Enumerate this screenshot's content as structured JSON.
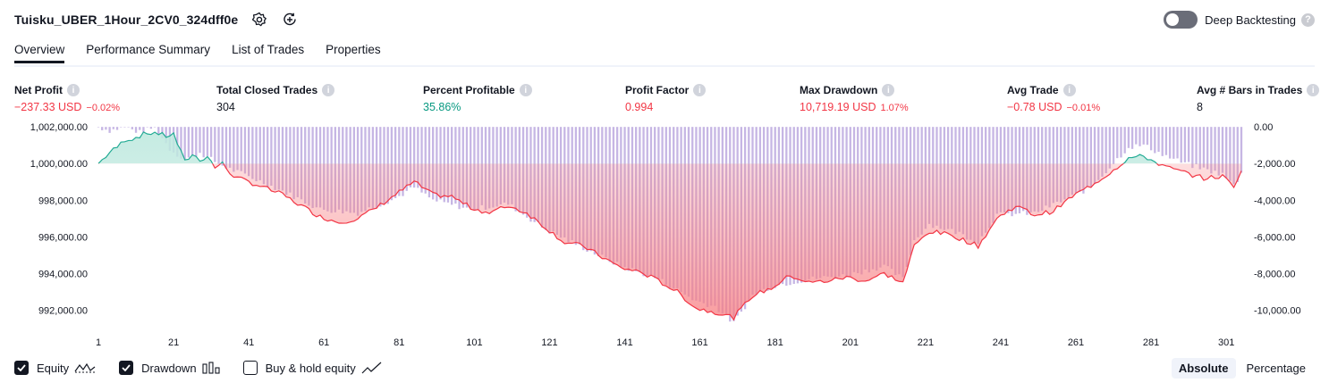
{
  "header": {
    "strategy_title": "Tuisku_UBER_1Hour_2CV0_324dff0e",
    "deep_backtesting_label": "Deep Backtesting",
    "deep_backtesting_enabled": false
  },
  "tabs": [
    {
      "label": "Overview",
      "active": true
    },
    {
      "label": "Performance Summary",
      "active": false
    },
    {
      "label": "List of Trades",
      "active": false
    },
    {
      "label": "Properties",
      "active": false
    }
  ],
  "metrics": {
    "net_profit": {
      "label": "Net Profit",
      "value": "−237.33 USD",
      "pct": "−0.02%"
    },
    "total_closed_trades": {
      "label": "Total Closed Trades",
      "value": "304"
    },
    "percent_profitable": {
      "label": "Percent Profitable",
      "value": "35.86%"
    },
    "profit_factor": {
      "label": "Profit Factor",
      "value": "0.994"
    },
    "max_drawdown": {
      "label": "Max Drawdown",
      "value": "10,719.19 USD",
      "pct": "1.07%"
    },
    "avg_trade": {
      "label": "Avg Trade",
      "value": "−0.78 USD",
      "pct": "−0.01%"
    },
    "avg_bars": {
      "label": "Avg # Bars in Trades",
      "value": "8"
    }
  },
  "legend": {
    "equity": {
      "label": "Equity",
      "checked": true
    },
    "drawdown": {
      "label": "Drawdown",
      "checked": true
    },
    "buy_hold": {
      "label": "Buy & hold equity",
      "checked": false
    }
  },
  "scale": {
    "absolute": "Absolute",
    "percentage": "Percentage",
    "selected": "absolute"
  },
  "colors": {
    "equity_profit_line": "#22ab94",
    "equity_profit_fill": "#bfe9df",
    "equity_loss_line": "#f23645",
    "equity_loss_fill": "#f77c80",
    "drawdown_bar": "#b39ddb",
    "axis_text": "#131722"
  },
  "chart_data": {
    "type": "area",
    "x_ticks": [
      1,
      21,
      41,
      61,
      81,
      101,
      121,
      141,
      161,
      181,
      201,
      221,
      241,
      261,
      281,
      301
    ],
    "left_axis": {
      "ticks": [
        "1,002,000.00",
        "1,000,000.00",
        "998,000.00",
        "996,000.00",
        "994,000.00",
        "992,000.00"
      ],
      "ylim": [
        991000,
        1002300
      ]
    },
    "right_axis": {
      "ticks": [
        "0.00",
        "-2,000.00",
        "-4,000.00",
        "-6,000.00",
        "-8,000.00",
        "-10,000.00"
      ],
      "ylim": [
        -11000,
        300
      ]
    },
    "baseline": 1000000,
    "equity_keypoints": [
      [
        1,
        1000000
      ],
      [
        4,
        1000600
      ],
      [
        6,
        1000900
      ],
      [
        8,
        1001300
      ],
      [
        10,
        1001350
      ],
      [
        13,
        1001600
      ],
      [
        16,
        1001700
      ],
      [
        19,
        1001500
      ],
      [
        21,
        1001600
      ],
      [
        24,
        1000100
      ],
      [
        26,
        1000500
      ],
      [
        28,
        1000200
      ],
      [
        30,
        1000400
      ],
      [
        32,
        999800
      ],
      [
        34,
        1000000
      ],
      [
        36,
        999500
      ],
      [
        38,
        999200
      ],
      [
        41,
        999000
      ],
      [
        45,
        998700
      ],
      [
        50,
        998300
      ],
      [
        55,
        997700
      ],
      [
        60,
        997100
      ],
      [
        65,
        996800
      ],
      [
        70,
        997000
      ],
      [
        75,
        997600
      ],
      [
        80,
        998300
      ],
      [
        85,
        999000
      ],
      [
        90,
        998300
      ],
      [
        95,
        998200
      ],
      [
        100,
        997600
      ],
      [
        105,
        997300
      ],
      [
        110,
        997700
      ],
      [
        115,
        997300
      ],
      [
        120,
        996500
      ],
      [
        125,
        995700
      ],
      [
        130,
        995500
      ],
      [
        135,
        994900
      ],
      [
        140,
        994300
      ],
      [
        145,
        994100
      ],
      [
        150,
        993600
      ],
      [
        155,
        993000
      ],
      [
        160,
        992100
      ],
      [
        165,
        991900
      ],
      [
        170,
        991600
      ],
      [
        175,
        992800
      ],
      [
        180,
        993200
      ],
      [
        185,
        993900
      ],
      [
        190,
        993500
      ],
      [
        195,
        993600
      ],
      [
        200,
        993800
      ],
      [
        205,
        993600
      ],
      [
        210,
        994000
      ],
      [
        215,
        993500
      ],
      [
        218,
        995500
      ],
      [
        222,
        996300
      ],
      [
        228,
        996100
      ],
      [
        235,
        995500
      ],
      [
        240,
        997000
      ],
      [
        245,
        997700
      ],
      [
        250,
        997200
      ],
      [
        255,
        997400
      ],
      [
        260,
        998200
      ],
      [
        265,
        998800
      ],
      [
        270,
        999500
      ],
      [
        275,
        1000300
      ],
      [
        279,
        1000400
      ],
      [
        285,
        999800
      ],
      [
        290,
        999500
      ],
      [
        295,
        999200
      ],
      [
        300,
        999300
      ],
      [
        303,
        998800
      ],
      [
        305,
        999600
      ]
    ],
    "drawdown_keypoints": [
      [
        1,
        0
      ],
      [
        4,
        -200
      ],
      [
        8,
        0
      ],
      [
        12,
        -300
      ],
      [
        16,
        0
      ],
      [
        20,
        -1200
      ],
      [
        24,
        -1800
      ],
      [
        28,
        -1400
      ],
      [
        32,
        -1900
      ],
      [
        36,
        -2300
      ],
      [
        41,
        -2700
      ],
      [
        50,
        -3500
      ],
      [
        60,
        -4500
      ],
      [
        70,
        -4700
      ],
      [
        80,
        -3900
      ],
      [
        85,
        -3300
      ],
      [
        90,
        -4000
      ],
      [
        100,
        -4500
      ],
      [
        110,
        -4200
      ],
      [
        120,
        -5600
      ],
      [
        130,
        -6600
      ],
      [
        140,
        -7600
      ],
      [
        150,
        -8300
      ],
      [
        160,
        -9500
      ],
      [
        165,
        -9800
      ],
      [
        170,
        -10700
      ],
      [
        175,
        -9200
      ],
      [
        180,
        -8700
      ],
      [
        190,
        -8300
      ],
      [
        200,
        -8100
      ],
      [
        210,
        -7600
      ],
      [
        215,
        -8300
      ],
      [
        218,
        -6200
      ],
      [
        222,
        -5300
      ],
      [
        230,
        -5800
      ],
      [
        235,
        -6300
      ],
      [
        240,
        -4800
      ],
      [
        250,
        -4700
      ],
      [
        260,
        -3800
      ],
      [
        265,
        -3300
      ],
      [
        270,
        -2200
      ],
      [
        275,
        -1100
      ],
      [
        279,
        -1000
      ],
      [
        285,
        -1600
      ],
      [
        290,
        -2000
      ],
      [
        295,
        -2300
      ],
      [
        300,
        -2600
      ],
      [
        303,
        -3200
      ],
      [
        305,
        -2600
      ]
    ]
  }
}
